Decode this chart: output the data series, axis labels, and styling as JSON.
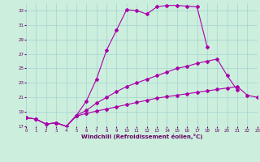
{
  "xlabel": "Windchill (Refroidissement éolien,°C)",
  "bg_color": "#cceedd",
  "line_color": "#aa00aa",
  "xlim": [
    0,
    23
  ],
  "ylim": [
    17,
    34
  ],
  "yticks": [
    17,
    19,
    21,
    23,
    25,
    27,
    29,
    31,
    33
  ],
  "xticks": [
    0,
    1,
    2,
    3,
    4,
    5,
    6,
    7,
    8,
    9,
    10,
    11,
    12,
    13,
    14,
    15,
    16,
    17,
    18,
    19,
    20,
    21,
    22,
    23
  ],
  "line_top_x": [
    0,
    1,
    2,
    3,
    4,
    5,
    6,
    7,
    8,
    9,
    10,
    11,
    12,
    13,
    14,
    15,
    16,
    17,
    18
  ],
  "line_top_y": [
    18.2,
    18.0,
    17.3,
    17.5,
    17.0,
    18.5,
    20.5,
    23.5,
    27.5,
    30.3,
    33.1,
    33.0,
    32.5,
    33.5,
    33.7,
    33.7,
    33.6,
    33.5,
    28.0
  ],
  "line_mid_x": [
    0,
    1,
    2,
    3,
    4,
    5,
    6,
    7,
    8,
    9,
    10,
    11,
    12,
    13,
    14,
    15,
    16,
    17,
    18,
    19,
    20,
    21
  ],
  "line_mid_y": [
    18.2,
    18.0,
    17.3,
    17.5,
    17.0,
    18.5,
    19.2,
    20.2,
    21.0,
    21.8,
    22.5,
    23.0,
    23.5,
    24.0,
    24.5,
    25.0,
    25.3,
    25.7,
    26.0,
    26.3,
    24.0,
    22.0
  ],
  "line_bot_x": [
    0,
    1,
    2,
    3,
    4,
    5,
    6,
    7,
    8,
    9,
    10,
    11,
    12,
    13,
    14,
    15,
    16,
    17,
    18,
    19,
    20,
    21,
    22,
    23
  ],
  "line_bot_y": [
    18.2,
    18.0,
    17.3,
    17.5,
    17.0,
    18.4,
    18.8,
    19.1,
    19.4,
    19.7,
    20.0,
    20.3,
    20.6,
    20.9,
    21.1,
    21.3,
    21.5,
    21.7,
    21.9,
    22.1,
    22.3,
    22.5,
    21.3,
    21.0
  ],
  "marker": "D",
  "markersize": 2,
  "linewidth": 0.8,
  "xlabel_fontsize": 5,
  "tick_fontsize": 4,
  "xlabel_color": "#660066",
  "tick_color": "#660066",
  "grid_color": "#99cccc"
}
